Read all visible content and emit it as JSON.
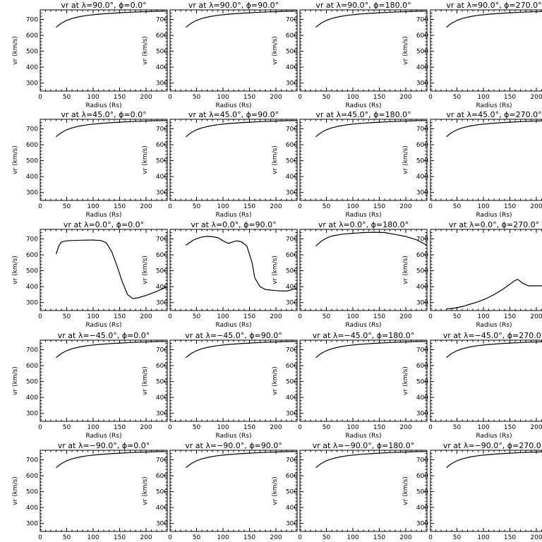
{
  "chart_data": {
    "type": "line",
    "rows": 5,
    "cols": 4,
    "xlabel": "Radius (Rs)",
    "ylabel": "vr (km/s)",
    "xlim": [
      0,
      240
    ],
    "ylim": [
      250,
      760
    ],
    "xticks": [
      0,
      50,
      100,
      150,
      200
    ],
    "yticks": [
      300,
      400,
      500,
      600,
      700
    ],
    "grid": false,
    "line_color": "#000000",
    "panels": [
      {
        "title": "vr at λ=90.0°, ϕ=0.0°",
        "x": [
          30,
          35,
          40,
          50,
          60,
          75,
          90,
          110,
          130,
          150,
          175,
          200,
          220,
          240
        ],
        "y": [
          650,
          664,
          676,
          694,
          706,
          718,
          726,
          733,
          738,
          742,
          746,
          749,
          751,
          752
        ]
      },
      {
        "title": "vr at λ=90.0°, ϕ=90.0°",
        "x": [
          30,
          35,
          40,
          50,
          60,
          75,
          90,
          110,
          130,
          150,
          175,
          200,
          220,
          240
        ],
        "y": [
          650,
          664,
          676,
          694,
          706,
          718,
          726,
          733,
          738,
          742,
          746,
          749,
          751,
          752
        ]
      },
      {
        "title": "vr at λ=90.0°, ϕ=180.0°",
        "x": [
          30,
          35,
          40,
          50,
          60,
          75,
          90,
          110,
          130,
          150,
          175,
          200,
          220,
          240
        ],
        "y": [
          650,
          664,
          676,
          694,
          706,
          718,
          726,
          733,
          738,
          742,
          746,
          749,
          751,
          752
        ]
      },
      {
        "title": "vr at λ=90.0°, ϕ=270.0°",
        "x": [
          30,
          35,
          40,
          50,
          60,
          75,
          90,
          110,
          130,
          150,
          175,
          200,
          220,
          240
        ],
        "y": [
          650,
          664,
          676,
          694,
          706,
          718,
          726,
          733,
          738,
          742,
          746,
          749,
          751,
          752
        ]
      },
      {
        "title": "vr at λ=45.0°, ϕ=0.0°",
        "x": [
          30,
          35,
          40,
          50,
          60,
          75,
          90,
          110,
          130,
          150,
          175,
          200,
          220,
          240
        ],
        "y": [
          650,
          664,
          676,
          694,
          706,
          718,
          726,
          733,
          738,
          742,
          746,
          749,
          751,
          752
        ]
      },
      {
        "title": "vr at λ=45.0°, ϕ=90.0°",
        "x": [
          30,
          35,
          40,
          50,
          60,
          75,
          90,
          110,
          130,
          150,
          175,
          200,
          220,
          240
        ],
        "y": [
          650,
          664,
          676,
          694,
          706,
          718,
          726,
          733,
          738,
          742,
          746,
          749,
          751,
          752
        ]
      },
      {
        "title": "vr at λ=45.0°, ϕ=180.0°",
        "x": [
          30,
          35,
          40,
          50,
          60,
          75,
          90,
          110,
          130,
          150,
          175,
          200,
          220,
          240
        ],
        "y": [
          650,
          664,
          676,
          694,
          706,
          718,
          726,
          733,
          738,
          742,
          746,
          749,
          751,
          752
        ]
      },
      {
        "title": "vr at λ=45.0°, ϕ=270.0°",
        "x": [
          30,
          35,
          40,
          50,
          60,
          75,
          90,
          110,
          130,
          150,
          175,
          200,
          220,
          240
        ],
        "y": [
          650,
          664,
          676,
          694,
          706,
          718,
          726,
          733,
          738,
          742,
          746,
          749,
          751,
          752
        ]
      },
      {
        "title": "vr at λ=0.0°, ϕ=0.0°",
        "x": [
          30,
          35,
          40,
          50,
          60,
          80,
          100,
          115,
          125,
          135,
          145,
          155,
          165,
          175,
          185,
          200,
          220,
          240
        ],
        "y": [
          605,
          655,
          680,
          688,
          690,
          692,
          693,
          690,
          675,
          620,
          530,
          430,
          350,
          325,
          330,
          345,
          370,
          400
        ]
      },
      {
        "title": "vr at λ=0.0°, ϕ=90.0°",
        "x": [
          30,
          35,
          45,
          60,
          70,
          80,
          90,
          100,
          110,
          125,
          135,
          145,
          155,
          160,
          170,
          180,
          200,
          220,
          240
        ],
        "y": [
          660,
          672,
          695,
          712,
          716,
          714,
          708,
          688,
          672,
          688,
          682,
          655,
          550,
          455,
          400,
          382,
          375,
          372,
          390
        ]
      },
      {
        "title": "vr at λ=0.0°, ϕ=180.0°",
        "x": [
          30,
          40,
          50,
          60,
          80,
          100,
          120,
          140,
          160,
          180,
          200,
          220,
          240
        ],
        "y": [
          655,
          685,
          705,
          718,
          730,
          735,
          740,
          742,
          740,
          728,
          715,
          695,
          660
        ]
      },
      {
        "title": "vr at λ=0.0°, ϕ=270.0°",
        "x": [
          30,
          45,
          60,
          75,
          90,
          105,
          120,
          135,
          150,
          160,
          165,
          175,
          185,
          200,
          215,
          225,
          240
        ],
        "y": [
          260,
          265,
          275,
          290,
          305,
          325,
          350,
          380,
          415,
          440,
          445,
          420,
          405,
          405,
          405,
          395,
          380
        ]
      },
      {
        "title": "vr at λ=−45.0°, ϕ=0.0°",
        "x": [
          30,
          35,
          40,
          50,
          60,
          75,
          90,
          110,
          130,
          150,
          175,
          200,
          220,
          240
        ],
        "y": [
          650,
          664,
          676,
          694,
          706,
          718,
          726,
          733,
          738,
          742,
          746,
          749,
          751,
          752
        ]
      },
      {
        "title": "vr at λ=−45.0°, ϕ=90.0°",
        "x": [
          30,
          35,
          40,
          50,
          60,
          75,
          90,
          110,
          130,
          150,
          175,
          200,
          220,
          240
        ],
        "y": [
          650,
          664,
          676,
          694,
          706,
          718,
          726,
          733,
          738,
          742,
          746,
          749,
          751,
          752
        ]
      },
      {
        "title": "vr at λ=−45.0°, ϕ=180.0°",
        "x": [
          30,
          35,
          40,
          50,
          60,
          75,
          90,
          110,
          130,
          150,
          175,
          200,
          220,
          240
        ],
        "y": [
          650,
          664,
          676,
          694,
          706,
          718,
          726,
          733,
          738,
          742,
          746,
          749,
          751,
          752
        ]
      },
      {
        "title": "vr at λ=−45.0°, ϕ=270.0°",
        "x": [
          30,
          35,
          40,
          50,
          60,
          75,
          90,
          110,
          130,
          150,
          175,
          200,
          220,
          240
        ],
        "y": [
          650,
          664,
          676,
          694,
          706,
          718,
          726,
          733,
          738,
          742,
          746,
          749,
          751,
          752
        ]
      },
      {
        "title": "vr at λ=−90.0°, ϕ=0.0°",
        "x": [
          30,
          35,
          40,
          50,
          60,
          75,
          90,
          110,
          130,
          150,
          175,
          200,
          220,
          240
        ],
        "y": [
          650,
          664,
          676,
          694,
          706,
          718,
          726,
          733,
          738,
          742,
          746,
          749,
          751,
          752
        ]
      },
      {
        "title": "vr at λ=−90.0°, ϕ=90.0°",
        "x": [
          30,
          35,
          40,
          50,
          60,
          75,
          90,
          110,
          130,
          150,
          175,
          200,
          220,
          240
        ],
        "y": [
          650,
          664,
          676,
          694,
          706,
          718,
          726,
          733,
          738,
          742,
          746,
          749,
          751,
          752
        ]
      },
      {
        "title": "vr at λ=−90.0°, ϕ=180.0°",
        "x": [
          30,
          35,
          40,
          50,
          60,
          75,
          90,
          110,
          130,
          150,
          175,
          200,
          220,
          240
        ],
        "y": [
          650,
          664,
          676,
          694,
          706,
          718,
          726,
          733,
          738,
          742,
          746,
          749,
          751,
          752
        ]
      },
      {
        "title": "vr at λ=−90.0°, ϕ=270.0°",
        "x": [
          30,
          35,
          40,
          50,
          60,
          75,
          90,
          110,
          130,
          150,
          175,
          200,
          220,
          240
        ],
        "y": [
          650,
          664,
          676,
          694,
          706,
          718,
          726,
          733,
          738,
          742,
          746,
          749,
          751,
          752
        ]
      }
    ]
  }
}
